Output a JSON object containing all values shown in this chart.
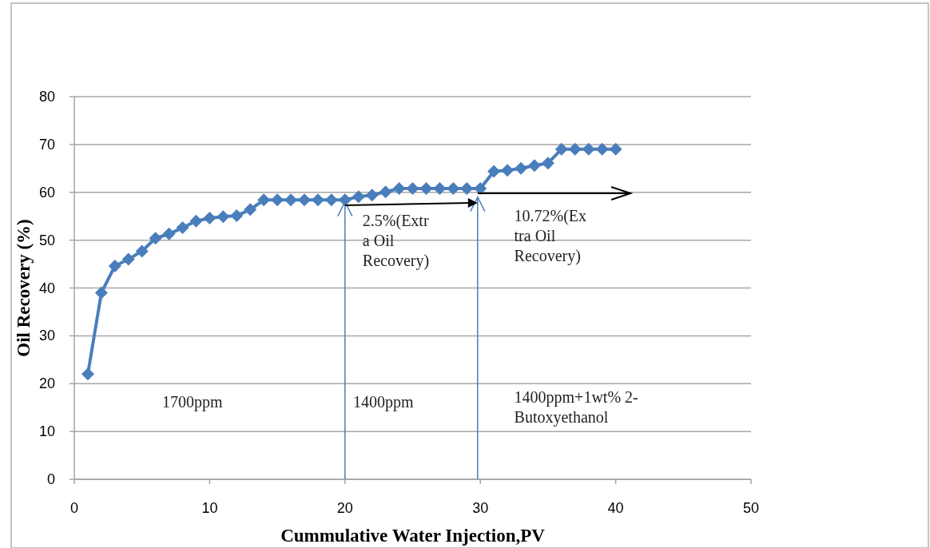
{
  "chart_data": {
    "type": "line",
    "xlabel": "Cummulative Water Injection,PV",
    "ylabel": "Oil Recovery (%)",
    "x": [
      1,
      2,
      3,
      4,
      5,
      6,
      7,
      8,
      9,
      10,
      11,
      12,
      13,
      14,
      15,
      16,
      17,
      18,
      19,
      20,
      21,
      22,
      23,
      24,
      25,
      26,
      27,
      28,
      29,
      30,
      31,
      32,
      33,
      34,
      35,
      36,
      37,
      38,
      39,
      40
    ],
    "series": [
      {
        "color": "#4a7ebb",
        "values": [
          22,
          39,
          44.6,
          46,
          47.7,
          50.4,
          51.3,
          52.6,
          54,
          54.6,
          54.9,
          55.1,
          56.4,
          58.4,
          58.4,
          58.4,
          58.4,
          58.4,
          58.4,
          58.4,
          59.1,
          59.4,
          60.1,
          60.8,
          60.8,
          60.8,
          60.8,
          60.8,
          60.8,
          60.8,
          64.4,
          64.6,
          65,
          65.6,
          66.1,
          69,
          69,
          69,
          69,
          69
        ]
      }
    ],
    "xlim": [
      0,
      50
    ],
    "xticks": [
      0,
      10,
      20,
      30,
      40,
      50
    ],
    "ylim": [
      0,
      80
    ],
    "yticks": [
      0,
      10,
      20,
      30,
      40,
      50,
      60,
      70,
      80
    ],
    "grid": "y",
    "marker": "diamond",
    "line_style": "solid",
    "annotations": [
      "2.5%(Extr\na Oil\nRecovery)",
      "10.72%(Ex\ntra Oil\nRecovery)",
      "1700ppm",
      "1400ppm",
      "1400ppm+1wt% 2-\nButoxyethanol"
    ]
  }
}
